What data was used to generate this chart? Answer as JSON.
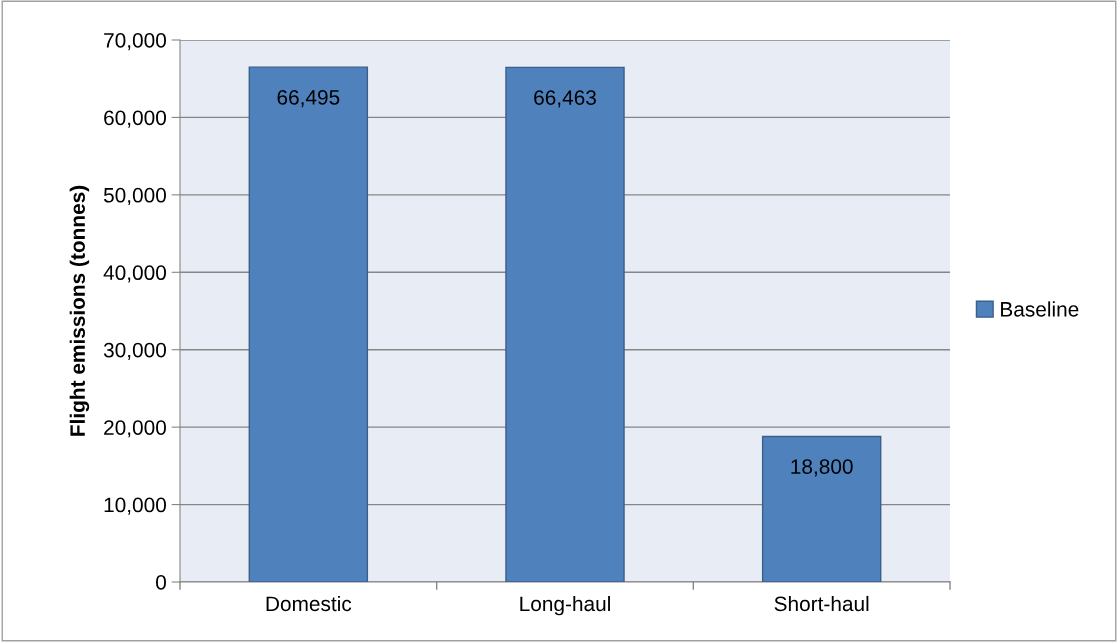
{
  "chart_data": {
    "type": "bar",
    "categories": [
      "Domestic",
      "Long-haul",
      "Short-haul"
    ],
    "series": [
      {
        "name": "Baseline",
        "color": "#4f81bd",
        "values": [
          66495,
          66463,
          18800
        ],
        "value_labels": [
          "66,495",
          "66,463",
          "18,800"
        ]
      }
    ],
    "ylabel": "Flight emissions (tonnes)",
    "ylim": [
      0,
      70000
    ],
    "yticks": [
      {
        "value": 0,
        "label": "0"
      },
      {
        "value": 10000,
        "label": "10,000"
      },
      {
        "value": 20000,
        "label": "20,000"
      },
      {
        "value": 30000,
        "label": "30,000"
      },
      {
        "value": 40000,
        "label": "40,000"
      },
      {
        "value": 50000,
        "label": "50,000"
      },
      {
        "value": 60000,
        "label": "60,000"
      },
      {
        "value": 70000,
        "label": "70,000"
      }
    ],
    "grid": "y",
    "legend": "right"
  }
}
